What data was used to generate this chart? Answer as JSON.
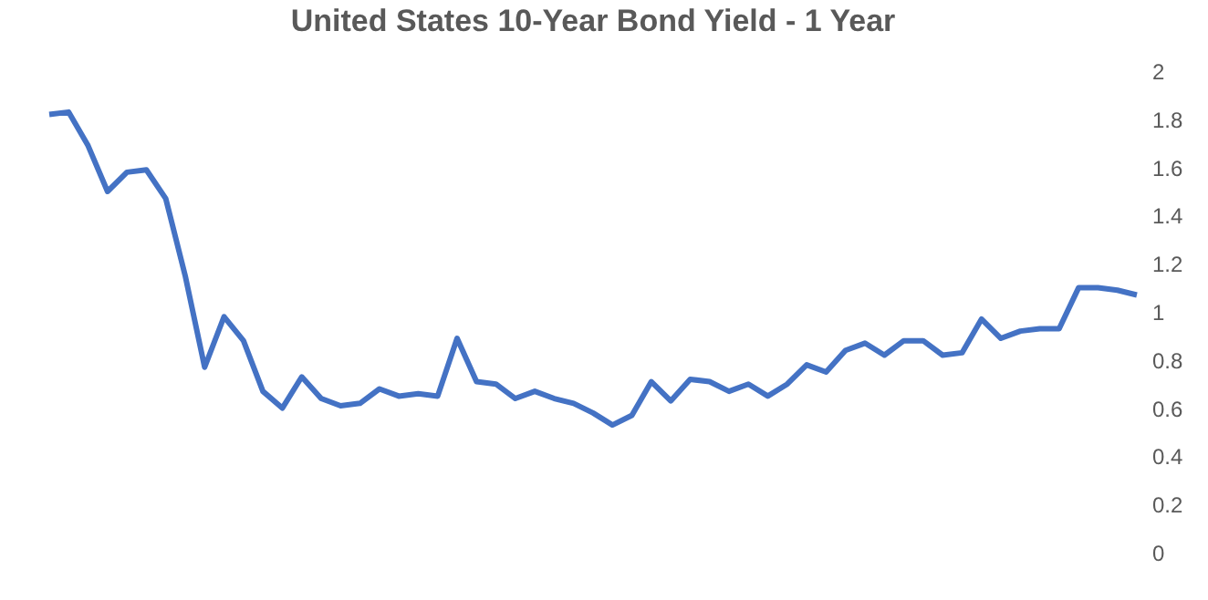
{
  "chart_data": {
    "type": "line",
    "title": "United States 10-Year Bond Yield - 1 Year",
    "categories": [
      null,
      null,
      null,
      null,
      null,
      null,
      null,
      null,
      null,
      null,
      null,
      null,
      null,
      null,
      null,
      null,
      null,
      null,
      null,
      null,
      null,
      null,
      null,
      null,
      null,
      null,
      null,
      null,
      null,
      null,
      null,
      null,
      null,
      null,
      null,
      null,
      null,
      null,
      null,
      null,
      null,
      null,
      null,
      null,
      null,
      null,
      null,
      null,
      null,
      null,
      null,
      null,
      null,
      null,
      null,
      null,
      null
    ],
    "series": [
      {
        "color": "#4472c4",
        "values": [
          1.82,
          1.83,
          1.69,
          1.5,
          1.58,
          1.59,
          1.47,
          1.15,
          0.77,
          0.98,
          0.88,
          0.67,
          0.6,
          0.73,
          0.64,
          0.61,
          0.62,
          0.68,
          0.65,
          0.66,
          0.65,
          0.89,
          0.71,
          0.7,
          0.64,
          0.67,
          0.64,
          0.62,
          0.58,
          0.53,
          0.57,
          0.71,
          0.63,
          0.72,
          0.71,
          0.67,
          0.7,
          0.65,
          0.7,
          0.78,
          0.75,
          0.84,
          0.87,
          0.82,
          0.88,
          0.88,
          0.82,
          0.83,
          0.97,
          0.89,
          0.92,
          0.93,
          0.93,
          1.1,
          1.1,
          1.09,
          1.07
        ]
      }
    ],
    "ylim": [
      0,
      2
    ],
    "yticks": [
      0,
      0.2,
      0.4,
      0.6,
      0.8,
      1,
      1.2,
      1.4,
      1.6,
      1.8,
      2
    ],
    "grid": false,
    "legend": false
  }
}
